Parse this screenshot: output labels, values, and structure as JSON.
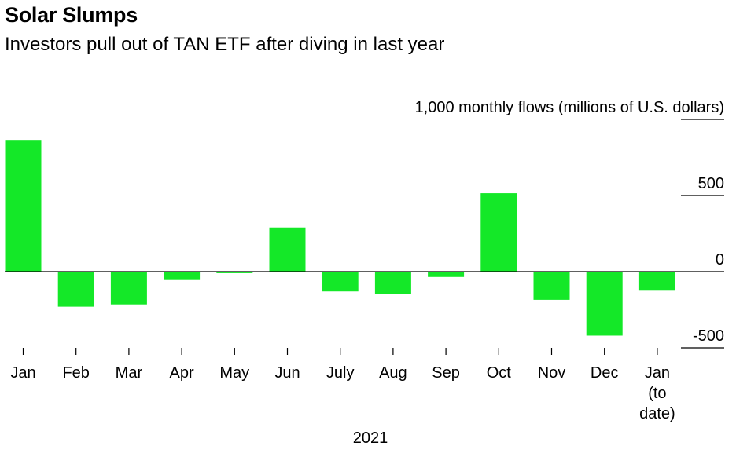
{
  "title": "Solar Slumps",
  "subtitle": "Investors pull out of TAN ETF after diving in last year",
  "colors": {
    "bar": "#14e828",
    "axis": "#000000",
    "text": "#000000"
  },
  "chart_data": {
    "type": "bar",
    "title": "Solar Slumps",
    "subtitle": "Investors pull out of TAN ETF after diving in last year",
    "ylabel": "monthly flows (millions of U.S. dollars)",
    "xlabel": "2021",
    "ylim": [
      -500,
      1000
    ],
    "yticks": [
      1000,
      500,
      0,
      -500
    ],
    "ytick_labels": [
      "1,000",
      "500",
      "0",
      "-500"
    ],
    "categories": [
      "Jan",
      "Feb",
      "Mar",
      "Apr",
      "May",
      "Jun",
      "July",
      "Aug",
      "Sep",
      "Oct",
      "Nov",
      "Dec",
      "Jan (to date)"
    ],
    "category_label_lines": [
      [
        "Jan"
      ],
      [
        "Feb"
      ],
      [
        "Mar"
      ],
      [
        "Apr"
      ],
      [
        "May"
      ],
      [
        "Jun"
      ],
      [
        "July"
      ],
      [
        "Aug"
      ],
      [
        "Sep"
      ],
      [
        "Oct"
      ],
      [
        "Nov"
      ],
      [
        "Dec"
      ],
      [
        "Jan",
        "(to",
        "date)"
      ]
    ],
    "values": [
      865,
      -230,
      -215,
      -50,
      -10,
      290,
      -130,
      -145,
      -35,
      515,
      -185,
      -420,
      -120
    ],
    "grid": false,
    "axis_position": "right"
  }
}
